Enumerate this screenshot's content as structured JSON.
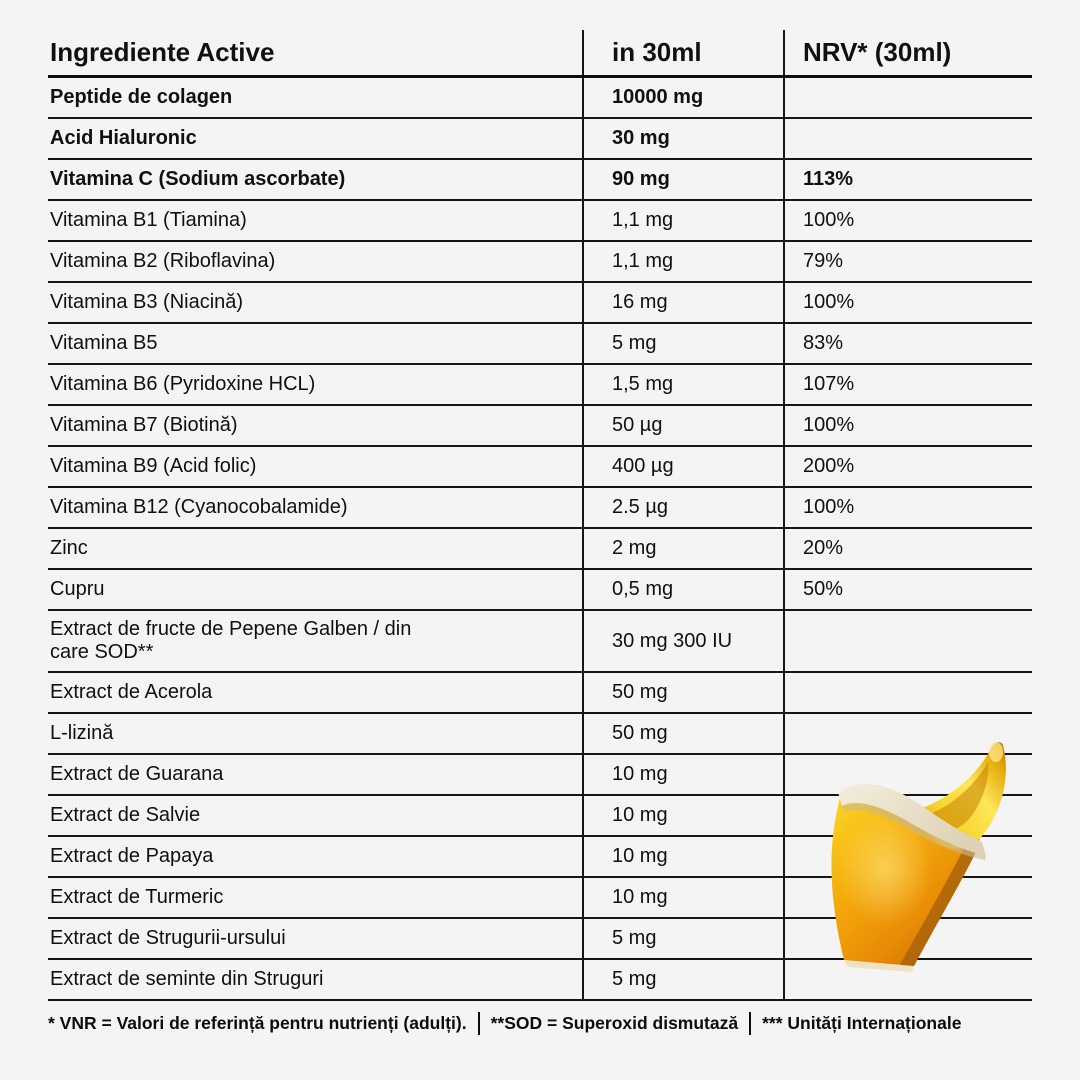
{
  "page": {
    "background": "#f4f4f4",
    "text_color": "#101010",
    "line_color": "#161616"
  },
  "table": {
    "headers": [
      "Ingrediente Active",
      "in 30ml",
      "NRV* (30ml)"
    ],
    "rows": [
      {
        "name": "Peptide de colagen",
        "amount": "10000 mg",
        "nrv": "",
        "bold": true
      },
      {
        "name": "Acid Hialuronic",
        "amount": "30 mg",
        "nrv": "",
        "bold": true
      },
      {
        "name": "Vitamina C (Sodium ascorbate)",
        "amount": "90 mg",
        "nrv": "113%",
        "bold": true
      },
      {
        "name": "Vitamina B1 (Tiamina)",
        "amount": "1,1 mg",
        "nrv": "100%"
      },
      {
        "name": "Vitamina B2 (Riboflavina)",
        "amount": "1,1 mg",
        "nrv": "79%"
      },
      {
        "name": "Vitamina B3 (Niacină)",
        "amount": "16 mg",
        "nrv": "100%"
      },
      {
        "name": "Vitamina B5",
        "amount": "5 mg",
        "nrv": "83%"
      },
      {
        "name": "Vitamina B6 (Pyridoxine HCL)",
        "amount": "1,5 mg",
        "nrv": "107%"
      },
      {
        "name": "Vitamina B7 (Biotină)",
        "amount": "50 µg",
        "nrv": "100%"
      },
      {
        "name": "Vitamina B9 (Acid folic)",
        "amount": "400 µg",
        "nrv": "200%"
      },
      {
        "name": "Vitamina B12 (Cyanocobalamide)",
        "amount": "2.5 µg",
        "nrv": "100%"
      },
      {
        "name": "Zinc",
        "amount": "2 mg",
        "nrv": "20%"
      },
      {
        "name": "Cupru",
        "amount": "0,5 mg",
        "nrv": "50%"
      },
      {
        "name": "Extract de fructe de Pepene Galben / din\ncare SOD**",
        "amount": "30 mg 300 IU",
        "nrv": "",
        "tall": true
      },
      {
        "name": "Extract de Acerola",
        "amount": "50 mg",
        "nrv": ""
      },
      {
        "name": "L-lizină",
        "amount": "50 mg",
        "nrv": ""
      },
      {
        "name": "Extract de Guarana",
        "amount": "10 mg",
        "nrv": ""
      },
      {
        "name": "Extract de Salvie",
        "amount": "10 mg",
        "nrv": ""
      },
      {
        "name": "Extract de Papaya",
        "amount": "10 mg",
        "nrv": ""
      },
      {
        "name": "Extract de Turmeric",
        "amount": "10 mg",
        "nrv": ""
      },
      {
        "name": "Extract de Strugurii-ursului",
        "amount": "5 mg",
        "nrv": ""
      },
      {
        "name": "Extract de seminte din Struguri",
        "amount": "5 mg",
        "nrv": ""
      }
    ]
  },
  "footer": {
    "parts": [
      "* VNR = Valori de referință pentru nutrienți (adulți).",
      "**SOD = Superoxid dismutază",
      "*** Unități Internaționale"
    ]
  },
  "graphic": {
    "name": "amber-liquid-sachet",
    "colors": {
      "bright_yellow": "#f9ce1e",
      "mid_orange": "#f09d06",
      "deep_orange": "#c06605",
      "rim_cream": "#efe8d5"
    }
  }
}
